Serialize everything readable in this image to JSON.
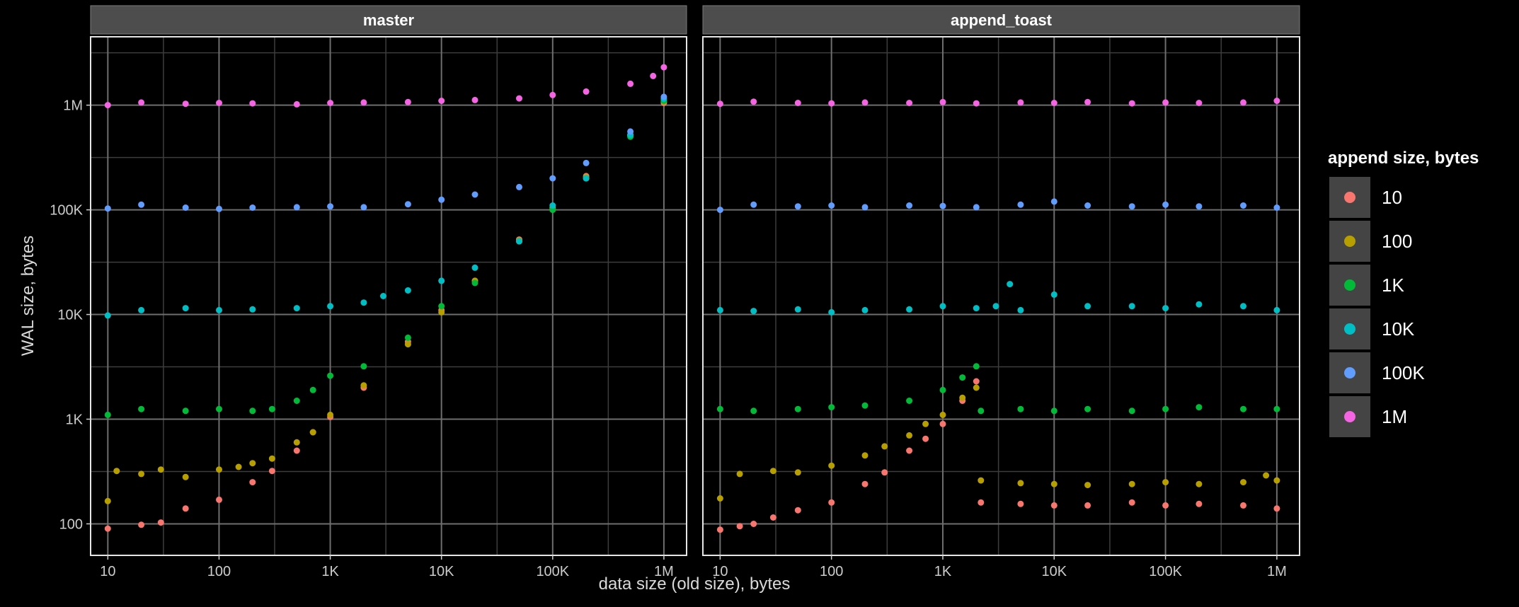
{
  "chart_data": {
    "type": "scatter",
    "xlabel": "data size (old size), bytes",
    "ylabel": "WAL size, bytes",
    "x_scale": "log10",
    "y_scale": "log10",
    "xlim": [
      7,
      1600000
    ],
    "ylim": [
      50,
      4500000
    ],
    "x_ticks": [
      {
        "value": 10,
        "label": "10"
      },
      {
        "value": 100,
        "label": "100"
      },
      {
        "value": 1000,
        "label": "1K"
      },
      {
        "value": 10000,
        "label": "10K"
      },
      {
        "value": 100000,
        "label": "100K"
      },
      {
        "value": 1000000,
        "label": "1M"
      }
    ],
    "y_ticks": [
      {
        "value": 100,
        "label": "100"
      },
      {
        "value": 1000,
        "label": "1K"
      },
      {
        "value": 10000,
        "label": "10K"
      },
      {
        "value": 100000,
        "label": "100K"
      },
      {
        "value": 1000000,
        "label": "1M"
      }
    ],
    "legend": {
      "title": "append size, bytes",
      "position": "right",
      "entries": [
        {
          "label": "10",
          "color": "#F8766D"
        },
        {
          "label": "100",
          "color": "#B79F00"
        },
        {
          "label": "1K",
          "color": "#00BA38"
        },
        {
          "label": "10K",
          "color": "#00BFC4"
        },
        {
          "label": "100K",
          "color": "#619CFF"
        },
        {
          "label": "1M",
          "color": "#F564E3"
        }
      ]
    },
    "facets": [
      {
        "title": "master",
        "series": [
          {
            "name": "10",
            "points": [
              [
                10,
                90
              ],
              [
                20,
                98
              ],
              [
                30,
                103
              ],
              [
                50,
                140
              ],
              [
                100,
                170
              ],
              [
                200,
                250
              ],
              [
                300,
                320
              ],
              [
                500,
                500
              ],
              [
                700,
                750
              ],
              [
                1000,
                1050
              ],
              [
                2000,
                2000
              ],
              [
                5000,
                5500
              ],
              [
                10000,
                11000
              ],
              [
                20000,
                21000
              ],
              [
                50000,
                52000
              ],
              [
                100000,
                105000
              ],
              [
                200000,
                210000
              ],
              [
                500000,
                520000
              ],
              [
                1000000,
                1050000
              ]
            ]
          },
          {
            "name": "100",
            "points": [
              [
                10,
                165
              ],
              [
                12,
                320
              ],
              [
                20,
                300
              ],
              [
                30,
                330
              ],
              [
                50,
                280
              ],
              [
                100,
                330
              ],
              [
                150,
                350
              ],
              [
                200,
                380
              ],
              [
                300,
                420
              ],
              [
                500,
                600
              ],
              [
                700,
                750
              ],
              [
                1000,
                1100
              ],
              [
                2000,
                2100
              ],
              [
                5000,
                5200
              ],
              [
                10000,
                10500
              ],
              [
                20000,
                21000
              ],
              [
                50000,
                51000
              ],
              [
                100000,
                102000
              ],
              [
                200000,
                205000
              ],
              [
                500000,
                510000
              ],
              [
                1000000,
                1080000
              ]
            ]
          },
          {
            "name": "1K",
            "points": [
              [
                10,
                1100
              ],
              [
                20,
                1250
              ],
              [
                50,
                1200
              ],
              [
                100,
                1250
              ],
              [
                200,
                1200
              ],
              [
                300,
                1250
              ],
              [
                500,
                1500
              ],
              [
                700,
                1900
              ],
              [
                1000,
                2600
              ],
              [
                2000,
                3200
              ],
              [
                5000,
                6000
              ],
              [
                10000,
                12000
              ],
              [
                20000,
                20000
              ],
              [
                50000,
                50000
              ],
              [
                100000,
                100000
              ],
              [
                200000,
                200000
              ],
              [
                500000,
                500000
              ],
              [
                1000000,
                1100000
              ]
            ]
          },
          {
            "name": "10K",
            "points": [
              [
                10,
                9800
              ],
              [
                20,
                11000
              ],
              [
                50,
                11500
              ],
              [
                100,
                11000
              ],
              [
                200,
                11200
              ],
              [
                500,
                11500
              ],
              [
                1000,
                12000
              ],
              [
                2000,
                13000
              ],
              [
                3000,
                15000
              ],
              [
                5000,
                17000
              ],
              [
                10000,
                21000
              ],
              [
                20000,
                28000
              ],
              [
                50000,
                50000
              ],
              [
                100000,
                110000
              ],
              [
                200000,
                200000
              ],
              [
                500000,
                520000
              ],
              [
                1000000,
                1150000
              ]
            ]
          },
          {
            "name": "100K",
            "points": [
              [
                10,
                103000
              ],
              [
                20,
                112000
              ],
              [
                50,
                105000
              ],
              [
                100,
                102000
              ],
              [
                200,
                105000
              ],
              [
                500,
                106000
              ],
              [
                1000,
                108000
              ],
              [
                2000,
                106000
              ],
              [
                5000,
                113000
              ],
              [
                10000,
                125000
              ],
              [
                20000,
                140000
              ],
              [
                50000,
                165000
              ],
              [
                100000,
                200000
              ],
              [
                200000,
                280000
              ],
              [
                500000,
                560000
              ],
              [
                1000000,
                1200000
              ]
            ]
          },
          {
            "name": "1M",
            "points": [
              [
                10,
                1000000
              ],
              [
                20,
                1060000
              ],
              [
                50,
                1030000
              ],
              [
                100,
                1050000
              ],
              [
                200,
                1040000
              ],
              [
                500,
                1020000
              ],
              [
                1000,
                1050000
              ],
              [
                2000,
                1060000
              ],
              [
                5000,
                1070000
              ],
              [
                10000,
                1100000
              ],
              [
                20000,
                1120000
              ],
              [
                50000,
                1160000
              ],
              [
                100000,
                1250000
              ],
              [
                200000,
                1350000
              ],
              [
                500000,
                1600000
              ],
              [
                800000,
                1900000
              ],
              [
                1000000,
                2300000
              ]
            ]
          }
        ]
      },
      {
        "title": "append_toast",
        "series": [
          {
            "name": "10",
            "points": [
              [
                10,
                88
              ],
              [
                15,
                95
              ],
              [
                20,
                100
              ],
              [
                30,
                115
              ],
              [
                50,
                135
              ],
              [
                100,
                160
              ],
              [
                200,
                240
              ],
              [
                300,
                310
              ],
              [
                500,
                500
              ],
              [
                700,
                650
              ],
              [
                1000,
                900
              ],
              [
                1500,
                1500
              ],
              [
                2000,
                2300
              ],
              [
                2200,
                160
              ],
              [
                5000,
                155
              ],
              [
                10000,
                150
              ],
              [
                20000,
                150
              ],
              [
                50000,
                160
              ],
              [
                100000,
                150
              ],
              [
                200000,
                155
              ],
              [
                500000,
                150
              ],
              [
                1000000,
                140
              ]
            ]
          },
          {
            "name": "100",
            "points": [
              [
                10,
                175
              ],
              [
                15,
                300
              ],
              [
                30,
                320
              ],
              [
                50,
                310
              ],
              [
                100,
                360
              ],
              [
                200,
                450
              ],
              [
                300,
                550
              ],
              [
                500,
                700
              ],
              [
                700,
                900
              ],
              [
                1000,
                1100
              ],
              [
                1500,
                1600
              ],
              [
                2000,
                2000
              ],
              [
                2200,
                260
              ],
              [
                5000,
                245
              ],
              [
                10000,
                240
              ],
              [
                20000,
                235
              ],
              [
                50000,
                240
              ],
              [
                100000,
                250
              ],
              [
                200000,
                240
              ],
              [
                500000,
                250
              ],
              [
                800000,
                290
              ],
              [
                1000000,
                260
              ]
            ]
          },
          {
            "name": "1K",
            "points": [
              [
                10,
                1250
              ],
              [
                20,
                1200
              ],
              [
                50,
                1250
              ],
              [
                100,
                1300
              ],
              [
                200,
                1350
              ],
              [
                500,
                1500
              ],
              [
                1000,
                1900
              ],
              [
                1500,
                2500
              ],
              [
                2000,
                3200
              ],
              [
                2200,
                1200
              ],
              [
                5000,
                1250
              ],
              [
                10000,
                1200
              ],
              [
                20000,
                1250
              ],
              [
                50000,
                1200
              ],
              [
                100000,
                1250
              ],
              [
                200000,
                1300
              ],
              [
                500000,
                1250
              ],
              [
                1000000,
                1250
              ]
            ]
          },
          {
            "name": "10K",
            "points": [
              [
                10,
                11000
              ],
              [
                20,
                10800
              ],
              [
                50,
                11200
              ],
              [
                100,
                10500
              ],
              [
                200,
                11000
              ],
              [
                500,
                11200
              ],
              [
                1000,
                12000
              ],
              [
                2000,
                11500
              ],
              [
                3000,
                12000
              ],
              [
                4000,
                19500
              ],
              [
                5000,
                11000
              ],
              [
                10000,
                15500
              ],
              [
                20000,
                12000
              ],
              [
                50000,
                12000
              ],
              [
                100000,
                11500
              ],
              [
                200000,
                12500
              ],
              [
                500000,
                12000
              ],
              [
                1000000,
                11000
              ]
            ]
          },
          {
            "name": "100K",
            "points": [
              [
                10,
                100000
              ],
              [
                20,
                112000
              ],
              [
                50,
                108000
              ],
              [
                100,
                110000
              ],
              [
                200,
                106000
              ],
              [
                500,
                110000
              ],
              [
                1000,
                109000
              ],
              [
                2000,
                106000
              ],
              [
                5000,
                112000
              ],
              [
                10000,
                120000
              ],
              [
                20000,
                110000
              ],
              [
                50000,
                108000
              ],
              [
                100000,
                112000
              ],
              [
                200000,
                108000
              ],
              [
                500000,
                110000
              ],
              [
                1000000,
                105000
              ]
            ]
          },
          {
            "name": "1M",
            "points": [
              [
                10,
                1030000
              ],
              [
                20,
                1080000
              ],
              [
                50,
                1050000
              ],
              [
                100,
                1040000
              ],
              [
                200,
                1060000
              ],
              [
                500,
                1050000
              ],
              [
                1000,
                1070000
              ],
              [
                2000,
                1040000
              ],
              [
                5000,
                1060000
              ],
              [
                10000,
                1050000
              ],
              [
                20000,
                1070000
              ],
              [
                50000,
                1040000
              ],
              [
                100000,
                1060000
              ],
              [
                200000,
                1050000
              ],
              [
                500000,
                1060000
              ],
              [
                1000000,
                1100000
              ]
            ]
          }
        ]
      }
    ]
  }
}
